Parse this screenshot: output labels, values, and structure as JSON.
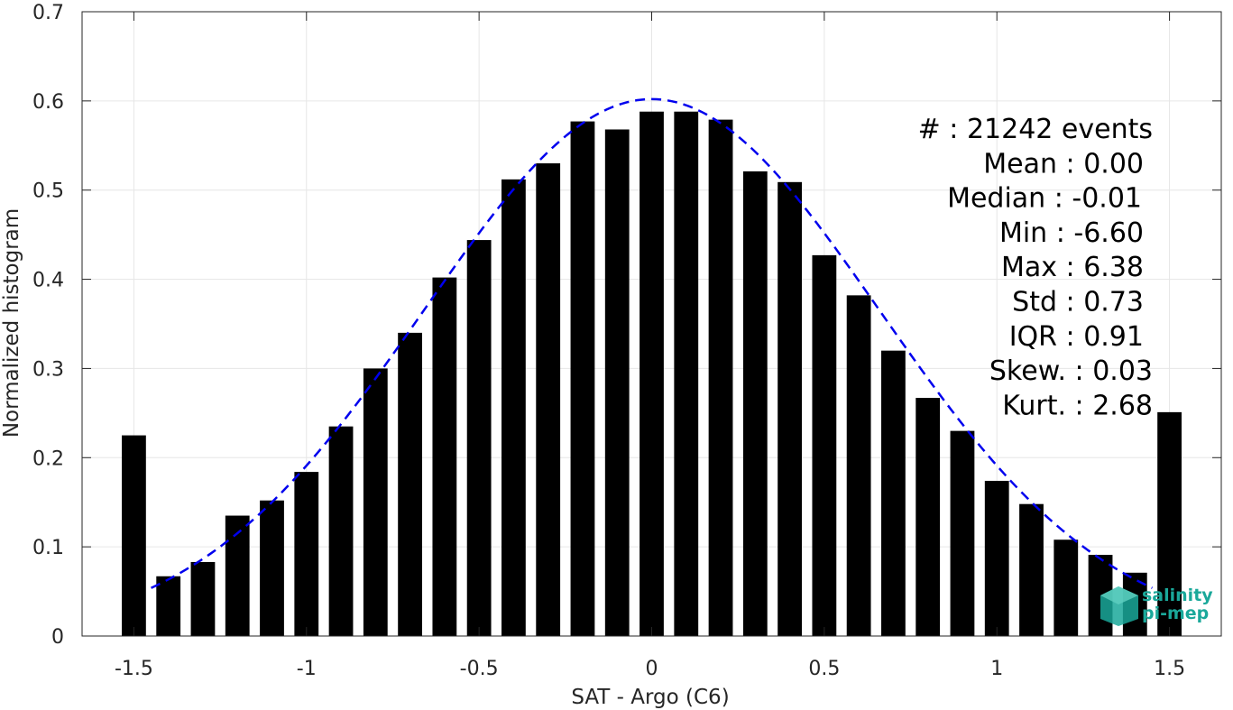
{
  "chart_data": {
    "type": "bar",
    "x": [
      -1.5,
      -1.4,
      -1.3,
      -1.2,
      -1.1,
      -1.0,
      -0.9,
      -0.8,
      -0.7,
      -0.6,
      -0.5,
      -0.4,
      -0.3,
      -0.2,
      -0.1,
      0.0,
      0.1,
      0.2,
      0.3,
      0.4,
      0.5,
      0.6,
      0.7,
      0.8,
      0.9,
      1.0,
      1.1,
      1.2,
      1.3,
      1.4,
      1.5
    ],
    "values": [
      0.225,
      0.067,
      0.083,
      0.135,
      0.152,
      0.184,
      0.235,
      0.3,
      0.34,
      0.402,
      0.444,
      0.512,
      0.53,
      0.577,
      0.568,
      0.588,
      0.588,
      0.579,
      0.521,
      0.509,
      0.427,
      0.382,
      0.32,
      0.267,
      0.23,
      0.174,
      0.148,
      0.108,
      0.091,
      0.071,
      0.251
    ],
    "bar_width": 0.07,
    "bar_color": "#000000",
    "fit": {
      "style": "dashed",
      "color": "#0000ee",
      "mean": 0.0,
      "std": 0.66,
      "peak": 0.602,
      "x_range": [
        -1.45,
        1.45
      ]
    },
    "xlabel": "SAT - Argo (C6)",
    "ylabel": "Normalized histogram",
    "xlim": [
      -1.65,
      1.65
    ],
    "ylim": [
      0,
      0.7
    ],
    "xticks": [
      -1.5,
      -1,
      -0.5,
      0,
      0.5,
      1,
      1.5
    ],
    "xtick_labels": [
      "-1.5",
      "-1",
      "-0.5",
      "0",
      "0.5",
      "1",
      "1.5"
    ],
    "yticks": [
      0,
      0.1,
      0.2,
      0.3,
      0.4,
      0.5,
      0.6,
      0.7
    ],
    "ytick_labels": [
      "0",
      "0.1",
      "0.2",
      "0.3",
      "0.4",
      "0.5",
      "0.6",
      "0.7"
    ],
    "grid": true,
    "stats": [
      "#  : 21242 events",
      "Mean : 0.00",
      "Median : -0.01",
      "Min : -6.60",
      "Max : 6.38",
      "Std : 0.73",
      "IQR : 0.91",
      "Skew. : 0.03",
      "Kurt. : 2.68"
    ],
    "stats_placement": "top-right"
  },
  "logo": {
    "line1": "salinity",
    "line2": "pi-mep",
    "color": "#1aa89a"
  }
}
